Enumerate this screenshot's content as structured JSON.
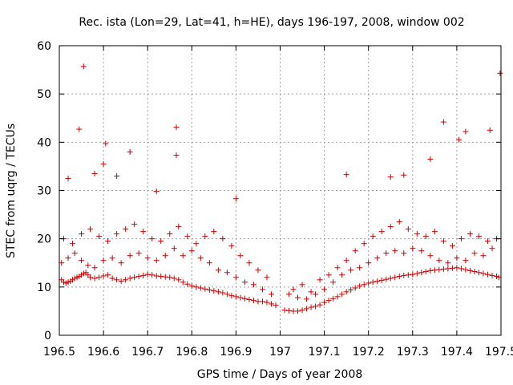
{
  "chart_data": {
    "type": "scatter",
    "title": "Rec. ista (Lon=29, Lat=41, h=HE), days 196-197, 2008, window 002",
    "xlabel": "GPS time / Days of year 2008",
    "ylabel": "STEC from uqrg / TECUs",
    "xlim": [
      196.5,
      197.5
    ],
    "ylim": [
      0,
      60
    ],
    "xticks": [
      196.5,
      196.6,
      196.7,
      196.8,
      196.9,
      197,
      197.1,
      197.2,
      197.3,
      197.4,
      197.5
    ],
    "xtick_labels": [
      "196.5",
      "196.6",
      "196.7",
      "196.8",
      "196.9",
      "197",
      "197.1",
      "197.2",
      "197.3",
      "197.4",
      "197.5"
    ],
    "yticks": [
      0,
      10,
      20,
      30,
      40,
      50,
      60
    ],
    "ytick_labels": [
      "0",
      "10",
      "20",
      "30",
      "40",
      "50",
      "60"
    ],
    "grid": true,
    "marker": "+",
    "marker_color": "#cc0000",
    "series": [
      {
        "name": "STEC",
        "x": [
          196.505,
          196.51,
          196.515,
          196.52,
          196.525,
          196.53,
          196.535,
          196.54,
          196.545,
          196.55,
          196.555,
          196.56,
          196.565,
          196.57,
          196.58,
          196.59,
          196.6,
          196.61,
          196.62,
          196.63,
          196.64,
          196.65,
          196.66,
          196.67,
          196.68,
          196.69,
          196.7,
          196.71,
          196.72,
          196.73,
          196.74,
          196.75,
          196.76,
          196.77,
          196.78,
          196.79,
          196.8,
          196.81,
          196.82,
          196.83,
          196.84,
          196.85,
          196.86,
          196.87,
          196.88,
          196.89,
          196.9,
          196.91,
          196.92,
          196.93,
          196.94,
          196.95,
          196.96,
          196.97,
          196.98,
          196.99,
          197.01,
          197.02,
          197.03,
          197.04,
          197.05,
          197.06,
          197.07,
          197.08,
          197.09,
          197.1,
          197.11,
          197.12,
          197.13,
          197.14,
          197.15,
          197.16,
          197.17,
          197.18,
          197.19,
          197.2,
          197.21,
          197.22,
          197.23,
          197.24,
          197.25,
          197.26,
          197.27,
          197.28,
          197.29,
          197.3,
          197.31,
          197.32,
          197.33,
          197.34,
          197.35,
          197.36,
          197.37,
          197.38,
          197.39,
          197.4,
          197.41,
          197.42,
          197.43,
          197.44,
          197.45,
          197.46,
          197.47,
          197.48,
          197.49,
          197.495,
          196.505,
          196.52,
          196.535,
          196.55,
          196.565,
          196.58,
          196.6,
          196.62,
          196.64,
          196.66,
          196.68,
          196.7,
          196.72,
          196.74,
          196.76,
          196.78,
          196.8,
          196.82,
          196.84,
          196.86,
          196.88,
          196.9,
          196.92,
          196.94,
          196.96,
          196.98,
          197.02,
          197.04,
          197.06,
          197.08,
          197.1,
          197.12,
          197.14,
          197.16,
          197.18,
          197.2,
          197.22,
          197.24,
          197.26,
          197.28,
          197.3,
          197.32,
          197.34,
          197.36,
          197.38,
          197.4,
          197.42,
          197.44,
          197.46,
          197.48,
          196.51,
          196.53,
          196.55,
          196.57,
          196.59,
          196.61,
          196.63,
          196.65,
          196.67,
          196.69,
          196.71,
          196.73,
          196.75,
          196.77,
          196.79,
          196.81,
          196.83,
          196.85,
          196.87,
          196.89,
          196.91,
          196.93,
          196.95,
          196.97,
          197.03,
          197.05,
          197.07,
          197.09,
          197.11,
          197.13,
          197.15,
          197.17,
          197.19,
          197.21,
          197.23,
          197.25,
          197.27,
          197.29,
          197.31,
          197.33,
          197.35,
          197.37,
          197.39,
          197.41,
          197.43,
          197.45,
          197.47,
          197.49,
          196.555,
          196.58,
          196.605,
          196.63,
          196.66,
          196.72,
          196.765,
          196.9,
          197.15,
          197.25,
          197.28,
          197.34,
          197.37,
          197.405,
          197.42,
          197.475,
          197.498,
          196.545,
          196.6,
          196.765,
          196.52
        ],
        "y": [
          11.5,
          11,
          10.8,
          11,
          11.2,
          11.5,
          11.8,
          12,
          12.2,
          12.5,
          12.8,
          13,
          12.5,
          12,
          11.8,
          12,
          12.3,
          12.5,
          11.8,
          11.5,
          11.2,
          11.5,
          11.8,
          12,
          12.2,
          12.4,
          12.6,
          12.5,
          12.3,
          12.2,
          12.1,
          12,
          11.8,
          11.5,
          11,
          10.6,
          10.2,
          10,
          9.8,
          9.6,
          9.4,
          9.2,
          9,
          8.8,
          8.5,
          8.2,
          8,
          7.8,
          7.6,
          7.4,
          7.2,
          7,
          7,
          6.8,
          6.5,
          6.2,
          5.2,
          5.1,
          5,
          5,
          5.2,
          5.5,
          5.8,
          6,
          6.3,
          6.8,
          7.2,
          7.6,
          8,
          8.5,
          9,
          9.4,
          9.8,
          10.2,
          10.5,
          10.8,
          11,
          11.2,
          11.4,
          11.6,
          11.8,
          12,
          12.2,
          12.4,
          12.5,
          12.6,
          12.8,
          13,
          13.2,
          13.4,
          13.5,
          13.6,
          13.7,
          13.8,
          13.9,
          14,
          13.8,
          13.6,
          13.4,
          13.2,
          13,
          12.8,
          12.6,
          12.4,
          12.2,
          12,
          15,
          16,
          17,
          15.5,
          14.5,
          14,
          15.5,
          16,
          15,
          16.5,
          17,
          16,
          15.5,
          16.5,
          18,
          16.5,
          17.5,
          16,
          15,
          13.5,
          13,
          12,
          11,
          10.5,
          9.5,
          8.5,
          8.5,
          7.8,
          7.5,
          8.5,
          9.5,
          11,
          12.5,
          13.5,
          14,
          15,
          16,
          17,
          17.5,
          17,
          18,
          17.5,
          16.5,
          15.5,
          15,
          16,
          15.5,
          17,
          16.5,
          18,
          20,
          19,
          21,
          22,
          20.5,
          19.5,
          21,
          22,
          23,
          21.5,
          20,
          19.5,
          21,
          22.5,
          20.5,
          19,
          20.5,
          21.5,
          20,
          18.5,
          16.5,
          15,
          13.5,
          12,
          9.5,
          10.5,
          9,
          11.5,
          12.5,
          14,
          15.5,
          17.5,
          19,
          20.5,
          21.5,
          22.5,
          23.5,
          22,
          21,
          20.5,
          21.5,
          19.5,
          18.5,
          20,
          21,
          20.5,
          19.5,
          20,
          55.7,
          33.5,
          39.7,
          33,
          38,
          29.8,
          43.1,
          28.3,
          33.3,
          32.8,
          33.2,
          36.5,
          44.2,
          40.5,
          42.2,
          42.5,
          54.3,
          42.7,
          35.5,
          37.3,
          32.5
        ]
      }
    ]
  }
}
